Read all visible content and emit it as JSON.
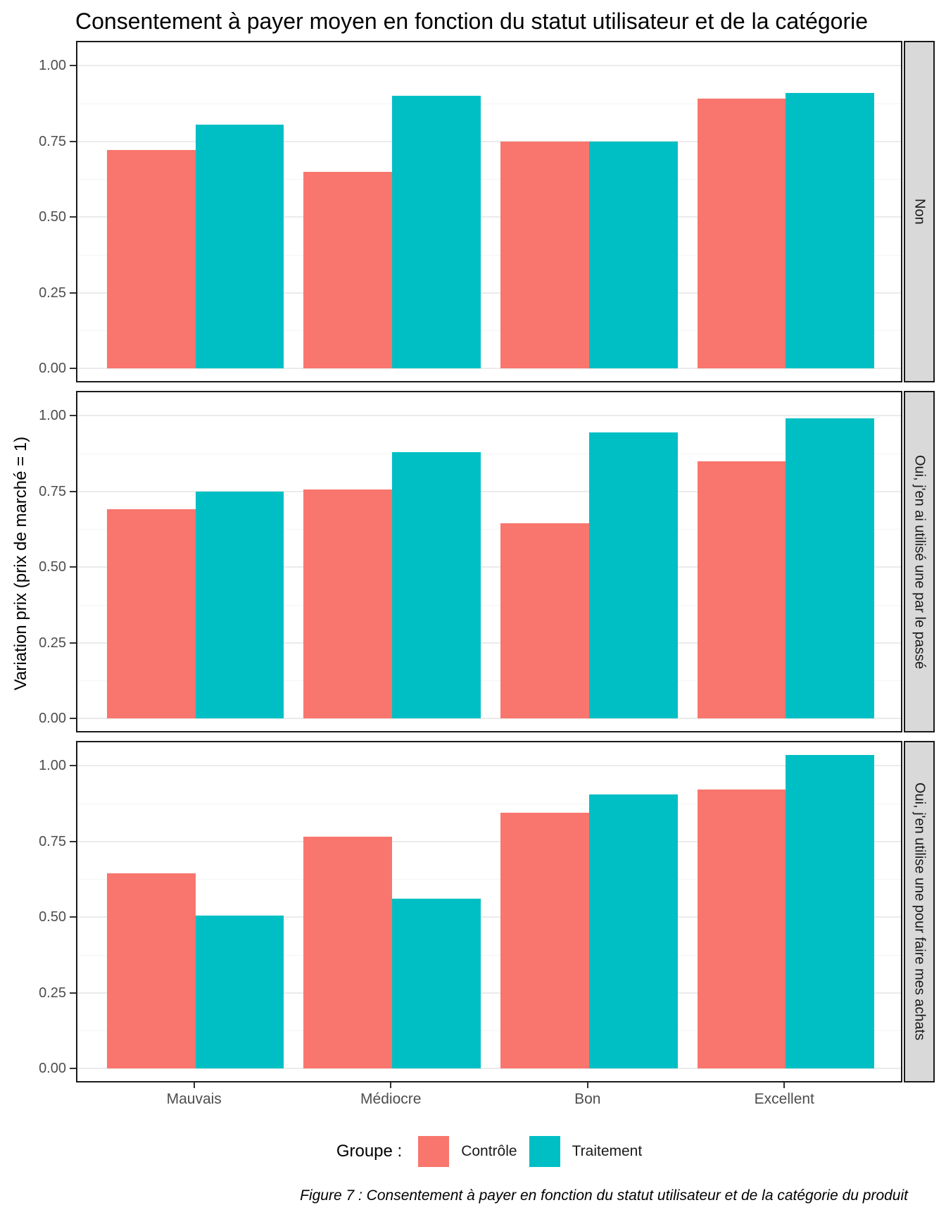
{
  "caption": "Figure 7 : Consentement à payer en fonction du statut utilisateur et de la catégorie du produit",
  "chart_data": {
    "type": "bar",
    "title": "Consentement à payer moyen en fonction du statut utilisateur et de la catégorie",
    "xlabel": "",
    "ylabel": "Variation prix (prix de marché = 1)",
    "categories": [
      "Mauvais",
      "Médiocre",
      "Bon",
      "Excellent"
    ],
    "y_ticks": [
      {
        "value": 0.0,
        "label": "0.00"
      },
      {
        "value": 0.25,
        "label": "0.25"
      },
      {
        "value": 0.5,
        "label": "0.50"
      },
      {
        "value": 0.75,
        "label": "0.75"
      },
      {
        "value": 1.0,
        "label": "1.00"
      }
    ],
    "ylim": [
      -0.045,
      1.095
    ],
    "grid": {
      "major": [
        0.0,
        0.25,
        0.5,
        0.75,
        1.0
      ],
      "minor": [
        0.125,
        0.375,
        0.625,
        0.875
      ]
    },
    "facets": [
      {
        "label": "Non",
        "series": [
          {
            "name": "Contrôle",
            "values": [
              0.72,
              0.65,
              0.75,
              0.89
            ]
          },
          {
            "name": "Traitement",
            "values": [
              0.805,
              0.9,
              0.75,
              0.91
            ]
          }
        ]
      },
      {
        "label": "Oui, j'en ai utilisé une par le passé",
        "series": [
          {
            "name": "Contrôle",
            "values": [
              0.69,
              0.755,
              0.645,
              0.85
            ]
          },
          {
            "name": "Traitement",
            "values": [
              0.75,
              0.88,
              0.945,
              0.99
            ]
          }
        ]
      },
      {
        "label": "Oui, j'en utilise une pour faire mes achats",
        "series": [
          {
            "name": "Contrôle",
            "values": [
              0.645,
              0.765,
              0.845,
              0.92
            ]
          },
          {
            "name": "Traitement",
            "values": [
              0.505,
              0.56,
              0.905,
              1.035
            ]
          }
        ]
      }
    ],
    "legend": {
      "title": "Groupe :",
      "position": "bottom",
      "entries": [
        {
          "name": "Contrôle",
          "color": "#F8766D"
        },
        {
          "name": "Traitement",
          "color": "#00BFC4"
        }
      ]
    },
    "colors": {
      "bar_control": "#F8766D",
      "bar_treatment": "#00BFC4",
      "strip_bg": "#D9D9D9",
      "panel_border": "#1A1A1A",
      "grid_major": "#EBEBEB",
      "grid_minor": "#F4F4F4",
      "axis_text": "#4D4D4D"
    }
  }
}
